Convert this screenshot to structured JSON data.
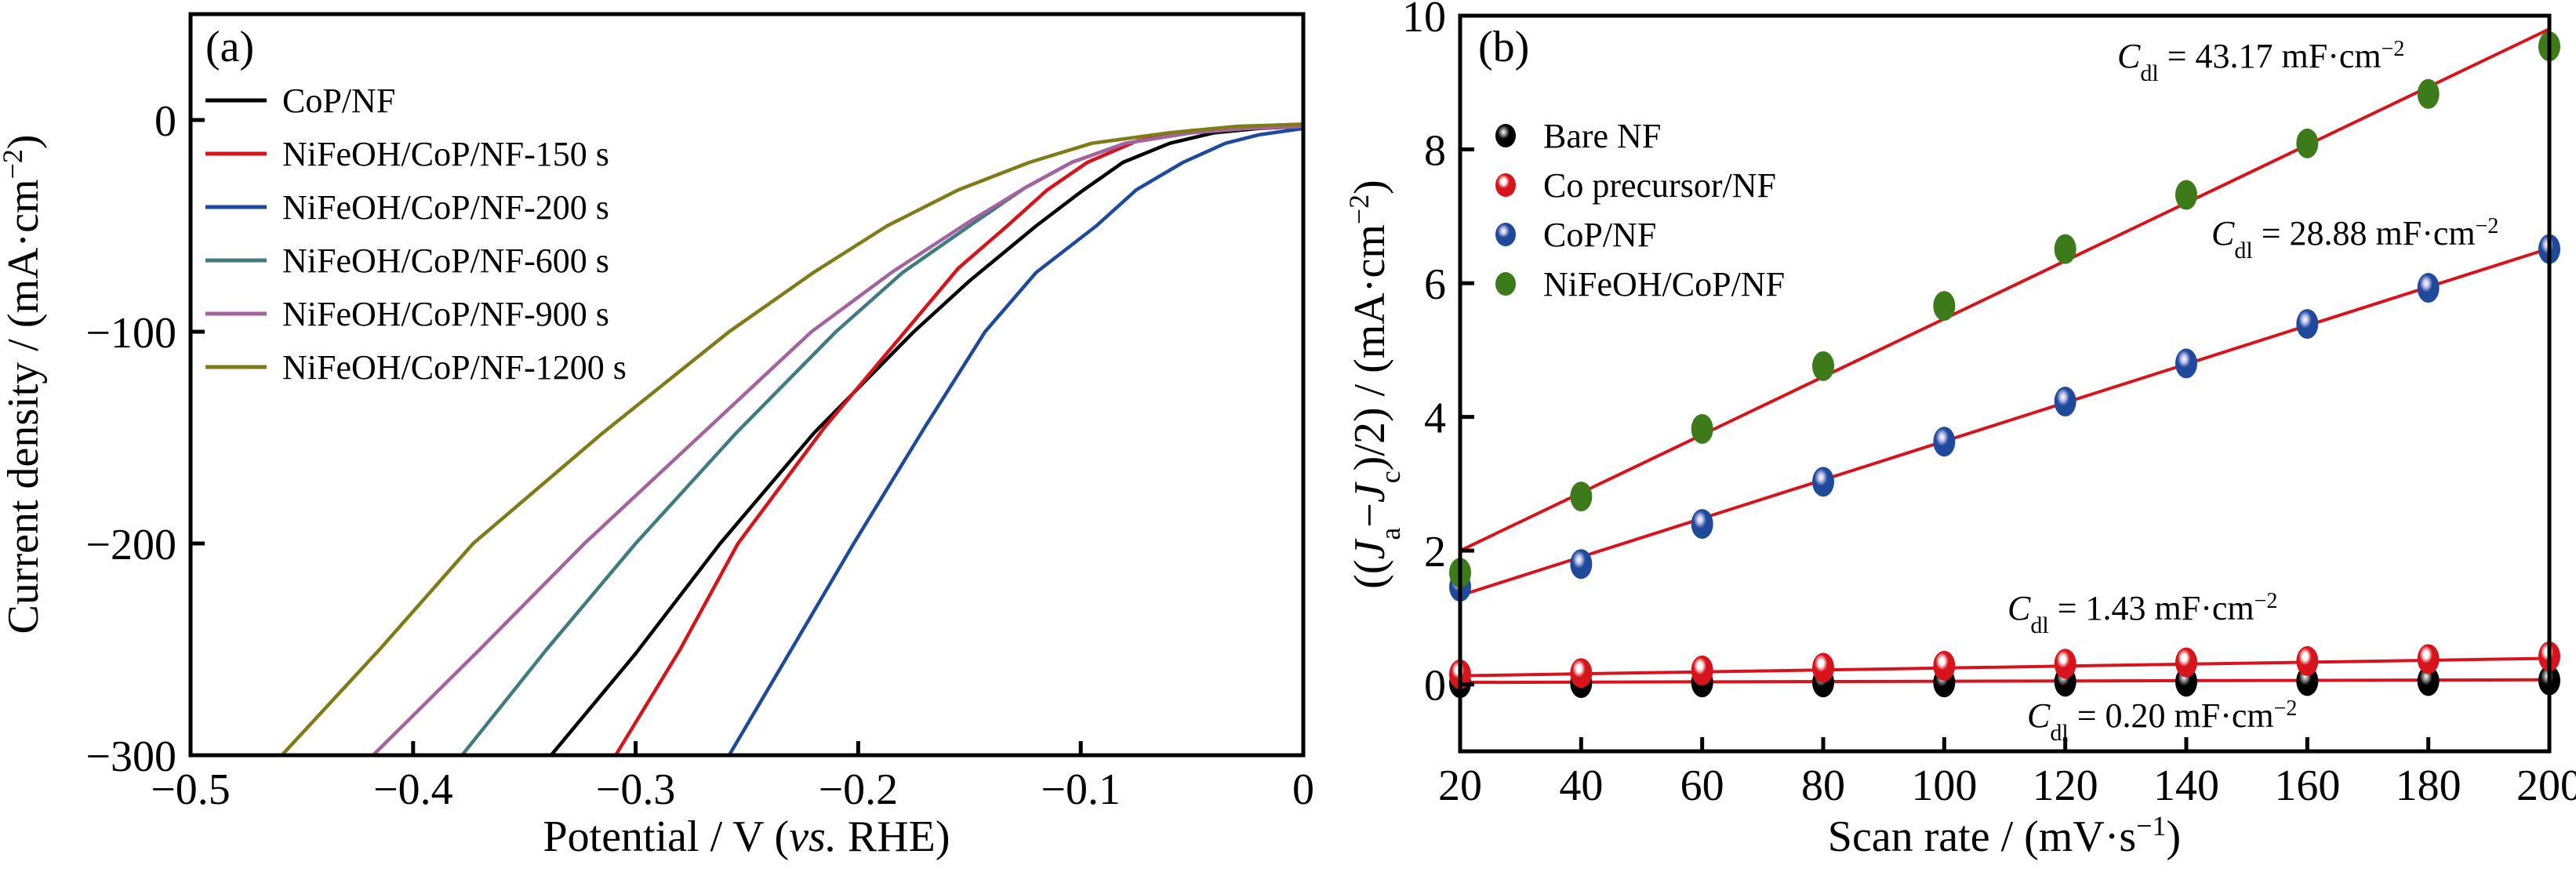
{
  "chart_data": [
    {
      "panel": "(a)",
      "type": "line",
      "xlabel_main": "Potential / V (",
      "xlabel_italic": "vs.",
      "xlabel_end": " RHE)",
      "ylabel": "Current density / (mA·cm",
      "ylabel_sup": "−2",
      "ylabel_end": ")",
      "xlim": [
        -0.5,
        0
      ],
      "ylim": [
        -300,
        50
      ],
      "xticks": [
        -0.5,
        -0.4,
        -0.3,
        -0.2,
        -0.1,
        0
      ],
      "xtick_labels": [
        "−0.5",
        "−0.4",
        "−0.3",
        "−0.2",
        "−0.1",
        "0"
      ],
      "yticks": [
        0,
        -100,
        -200,
        -300
      ],
      "ytick_labels": [
        "0",
        "−100",
        "−200",
        "−300"
      ],
      "legend_position": "top-left",
      "grid": false,
      "series": [
        {
          "name": "CoP/NF",
          "color": "#000000",
          "x": [
            -0.338,
            -0.3,
            -0.262,
            -0.22,
            -0.175,
            -0.15,
            -0.12,
            -0.1,
            -0.081,
            -0.06,
            -0.04,
            -0.02,
            0
          ],
          "y": [
            -300,
            -252,
            -200,
            -148,
            -100,
            -76,
            -50,
            -34,
            -20,
            -11,
            -6,
            -4,
            -3
          ]
        },
        {
          "name": "NiFeOH/CoP/NF-150 s",
          "color": "#d7141b",
          "x": [
            -0.309,
            -0.28,
            -0.254,
            -0.215,
            -0.179,
            -0.155,
            -0.133,
            -0.115,
            -0.097,
            -0.075,
            -0.05,
            -0.025,
            0
          ],
          "y": [
            -300,
            -250,
            -200,
            -145,
            -100,
            -70,
            -50,
            -33,
            -20,
            -10,
            -5,
            -3,
            -2
          ]
        },
        {
          "name": "NiFeOH/CoP/NF-200 s",
          "color": "#1f4a9b",
          "x": [
            -0.258,
            -0.23,
            -0.202,
            -0.17,
            -0.143,
            -0.12,
            -0.093,
            -0.075,
            -0.054,
            -0.035,
            -0.02,
            0
          ],
          "y": [
            -300,
            -250,
            -200,
            -145,
            -100,
            -72,
            -50,
            -33,
            -20,
            -11,
            -7,
            -4
          ]
        },
        {
          "name": "NiFeOH/CoP/NF-600 s",
          "color": "#3f7b80",
          "x": [
            -0.378,
            -0.34,
            -0.3,
            -0.255,
            -0.21,
            -0.18,
            -0.15,
            -0.125,
            -0.104,
            -0.08,
            -0.05,
            -0.025,
            0
          ],
          "y": [
            -300,
            -250,
            -200,
            -148,
            -100,
            -72,
            -50,
            -32,
            -20,
            -11,
            -6,
            -4,
            -3
          ]
        },
        {
          "name": "NiFeOH/CoP/NF-900 s",
          "color": "#a4629f",
          "x": [
            -0.418,
            -0.37,
            -0.323,
            -0.272,
            -0.221,
            -0.185,
            -0.15,
            -0.125,
            -0.104,
            -0.08,
            -0.05,
            -0.025,
            0
          ],
          "y": [
            -300,
            -250,
            -200,
            -150,
            -100,
            -72,
            -48,
            -32,
            -20,
            -11,
            -6,
            -4,
            -3
          ]
        },
        {
          "name": "NiFeOH/CoP/NF-1200 s",
          "color": "#7f7b17",
          "x": [
            -0.459,
            -0.415,
            -0.373,
            -0.315,
            -0.258,
            -0.22,
            -0.187,
            -0.155,
            -0.123,
            -0.095,
            -0.06,
            -0.03,
            0
          ],
          "y": [
            -300,
            -250,
            -200,
            -148,
            -100,
            -72,
            -50,
            -33,
            -20,
            -11,
            -6,
            -3,
            -2
          ]
        }
      ]
    },
    {
      "panel": "(b)",
      "type": "scatter",
      "xlabel": "Scan rate / (mV·s",
      "xlabel_sup": "−1",
      "xlabel_end": ")",
      "ylabel_parts": [
        "((",
        "J",
        "a",
        "−",
        "J",
        "c",
        ")/2) / (mA·cm",
        "−2",
        ")"
      ],
      "xlim": [
        20,
        200
      ],
      "ylim": [
        -1,
        10
      ],
      "xticks": [
        20,
        40,
        60,
        80,
        100,
        120,
        140,
        160,
        180,
        200
      ],
      "xtick_labels": [
        "20",
        "40",
        "60",
        "80",
        "100",
        "120",
        "140",
        "160",
        "180",
        "200"
      ],
      "yticks": [
        0,
        2,
        4,
        6,
        8,
        10
      ],
      "ytick_labels": [
        "0",
        "2",
        "4",
        "6",
        "8",
        "10"
      ],
      "legend_position": "upper-left",
      "grid": false,
      "x": [
        20,
        40,
        60,
        80,
        100,
        120,
        140,
        160,
        180,
        200
      ],
      "series": [
        {
          "name": "Bare NF",
          "color": "#000000",
          "highlight": "#9a9a9a",
          "values": [
            0.02,
            0.02,
            0.03,
            0.03,
            0.03,
            0.04,
            0.04,
            0.05,
            0.05,
            0.06
          ],
          "fit": [
            0.03,
            0.07
          ],
          "cdl_label": "C",
          "cdl_sub": "dl",
          "cdl_text": " = 0.20 mF·cm",
          "cdl_sup": "−2"
        },
        {
          "name": "Co precursor/NF",
          "color": "#d7141b",
          "highlight": "#ffffff",
          "values": [
            0.15,
            0.17,
            0.21,
            0.25,
            0.28,
            0.31,
            0.33,
            0.35,
            0.38,
            0.42
          ],
          "fit": [
            0.13,
            0.39
          ],
          "cdl_label": "C",
          "cdl_sub": "dl",
          "cdl_text": " = 1.43 mF·cm",
          "cdl_sup": "−2"
        },
        {
          "name": "CoP/NF",
          "color": "#1f4a9b",
          "highlight": "#c8c8f0",
          "values": [
            1.46,
            1.8,
            2.4,
            3.03,
            3.63,
            4.23,
            4.8,
            5.39,
            5.93,
            6.51
          ],
          "fit": [
            1.33,
            6.52
          ],
          "cdl_label": "C",
          "cdl_sub": "dl",
          "cdl_text": " = 28.88 mF·cm",
          "cdl_sup": "−2"
        },
        {
          "name": "NiFeOH/CoP/NF",
          "color": "#3d7a1a",
          "highlight": null,
          "values": [
            1.67,
            2.81,
            3.82,
            4.76,
            5.66,
            6.51,
            7.32,
            8.09,
            8.83,
            9.54
          ],
          "fit": [
            2.0,
            9.8
          ],
          "cdl_label": "C",
          "cdl_sub": "dl",
          "cdl_text": " = 43.17 mF·cm",
          "cdl_sup": "−2"
        }
      ],
      "fit_color": "#d7141b"
    }
  ]
}
